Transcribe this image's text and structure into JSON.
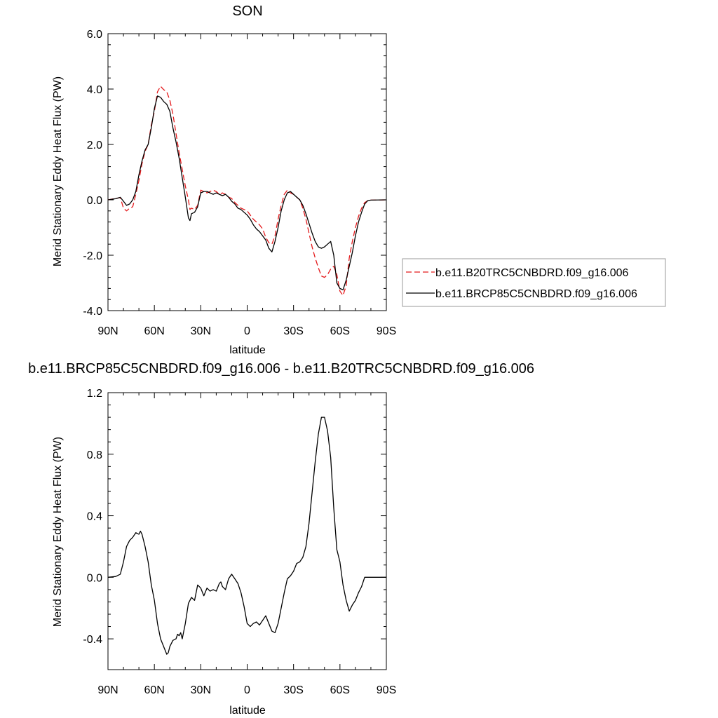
{
  "chart_data": [
    {
      "type": "line",
      "title": "SON",
      "xlabel": "latitude",
      "ylabel": "Merid Stationary Eddy Heat Flux (PW)",
      "xlim": [
        90,
        -90
      ],
      "ylim": [
        -4,
        6
      ],
      "x_ticks": [
        90,
        60,
        30,
        0,
        -30,
        -60,
        -90
      ],
      "x_tick_labels": [
        "90N",
        "60N",
        "30N",
        "0",
        "30S",
        "60S",
        "90S"
      ],
      "y_ticks": [
        -4,
        -2,
        0,
        2,
        4,
        6
      ],
      "y_tick_labels": [
        "-4.0",
        "-2.0",
        "0.0",
        "2.0",
        "4.0",
        "6.0"
      ],
      "grid": false,
      "legend_position": "right",
      "series": [
        {
          "name": "b.e11.B20TRC5CNBDRD.f09_g16.006",
          "color": "#e41a1c",
          "dash": "dashed",
          "points": [
            [
              90,
              0
            ],
            [
              85,
              0.05
            ],
            [
              82,
              0.08
            ],
            [
              80,
              -0.3
            ],
            [
              78,
              -0.4
            ],
            [
              76,
              -0.3
            ],
            [
              74,
              -0.25
            ],
            [
              72,
              0.2
            ],
            [
              70,
              0.7
            ],
            [
              68,
              1.3
            ],
            [
              66,
              1.75
            ],
            [
              64,
              2.0
            ],
            [
              62,
              2.7
            ],
            [
              60,
              3.2
            ],
            [
              58,
              3.9
            ],
            [
              56,
              4.1
            ],
            [
              54,
              3.98
            ],
            [
              52,
              3.9
            ],
            [
              50,
              3.6
            ],
            [
              48,
              3.1
            ],
            [
              46,
              2.4
            ],
            [
              44,
              1.7
            ],
            [
              42,
              1.1
            ],
            [
              40,
              0.5
            ],
            [
              38,
              0.0
            ],
            [
              37,
              -0.35
            ],
            [
              36,
              -0.3
            ],
            [
              34,
              -0.35
            ],
            [
              32,
              -0.2
            ],
            [
              30,
              0.35
            ],
            [
              28,
              0.3
            ],
            [
              26,
              0.25
            ],
            [
              24,
              0.3
            ],
            [
              22,
              0.35
            ],
            [
              20,
              0.3
            ],
            [
              18,
              0.2
            ],
            [
              16,
              0.25
            ],
            [
              14,
              0.2
            ],
            [
              12,
              0.1
            ],
            [
              10,
              0.05
            ],
            [
              8,
              -0.1
            ],
            [
              6,
              -0.2
            ],
            [
              4,
              -0.3
            ],
            [
              2,
              -0.35
            ],
            [
              0,
              -0.4
            ],
            [
              -2,
              -0.55
            ],
            [
              -4,
              -0.7
            ],
            [
              -6,
              -0.8
            ],
            [
              -8,
              -0.9
            ],
            [
              -10,
              -1.05
            ],
            [
              -12,
              -1.35
            ],
            [
              -14,
              -1.55
            ],
            [
              -16,
              -1.6
            ],
            [
              -18,
              -1.3
            ],
            [
              -20,
              -0.7
            ],
            [
              -22,
              -0.2
            ],
            [
              -24,
              0.2
            ],
            [
              -26,
              0.35
            ],
            [
              -28,
              0.25
            ],
            [
              -30,
              0.2
            ],
            [
              -32,
              0.1
            ],
            [
              -34,
              0.0
            ],
            [
              -36,
              -0.3
            ],
            [
              -38,
              -0.7
            ],
            [
              -40,
              -1.2
            ],
            [
              -42,
              -1.7
            ],
            [
              -44,
              -2.1
            ],
            [
              -46,
              -2.45
            ],
            [
              -48,
              -2.75
            ],
            [
              -50,
              -2.8
            ],
            [
              -52,
              -2.7
            ],
            [
              -54,
              -2.5
            ],
            [
              -56,
              -2.4
            ],
            [
              -58,
              -2.7
            ],
            [
              -60,
              -3.3
            ],
            [
              -62,
              -3.45
            ],
            [
              -64,
              -3.1
            ],
            [
              -66,
              -2.1
            ],
            [
              -68,
              -1.5
            ],
            [
              -70,
              -1.0
            ],
            [
              -72,
              -0.6
            ],
            [
              -74,
              -0.3
            ],
            [
              -76,
              -0.1
            ],
            [
              -78,
              -0.03
            ],
            [
              -80,
              -0.01
            ],
            [
              -90,
              0
            ]
          ]
        },
        {
          "name": "b.e11.BRCP85C5CNBDRD.f09_g16.006",
          "color": "#000000",
          "dash": "solid",
          "points": [
            [
              90,
              0
            ],
            [
              85,
              0.04
            ],
            [
              82,
              0.09
            ],
            [
              80,
              -0.05
            ],
            [
              78,
              -0.2
            ],
            [
              76,
              -0.15
            ],
            [
              74,
              0.0
            ],
            [
              72,
              0.3
            ],
            [
              70,
              0.9
            ],
            [
              68,
              1.4
            ],
            [
              66,
              1.8
            ],
            [
              64,
              2.0
            ],
            [
              62,
              2.6
            ],
            [
              60,
              3.3
            ],
            [
              58,
              3.75
            ],
            [
              56,
              3.7
            ],
            [
              54,
              3.55
            ],
            [
              52,
              3.45
            ],
            [
              50,
              3.2
            ],
            [
              48,
              2.6
            ],
            [
              46,
              2.1
            ],
            [
              44,
              1.5
            ],
            [
              42,
              0.8
            ],
            [
              40,
              0.1
            ],
            [
              38,
              -0.65
            ],
            [
              37,
              -0.75
            ],
            [
              36,
              -0.5
            ],
            [
              34,
              -0.45
            ],
            [
              32,
              -0.25
            ],
            [
              30,
              0.25
            ],
            [
              28,
              0.3
            ],
            [
              26,
              0.3
            ],
            [
              24,
              0.25
            ],
            [
              22,
              0.2
            ],
            [
              20,
              0.25
            ],
            [
              18,
              0.2
            ],
            [
              16,
              0.15
            ],
            [
              14,
              0.2
            ],
            [
              12,
              0.1
            ],
            [
              10,
              -0.05
            ],
            [
              8,
              -0.15
            ],
            [
              6,
              -0.3
            ],
            [
              4,
              -0.35
            ],
            [
              2,
              -0.45
            ],
            [
              0,
              -0.55
            ],
            [
              -2,
              -0.7
            ],
            [
              -4,
              -0.9
            ],
            [
              -6,
              -1.05
            ],
            [
              -8,
              -1.15
            ],
            [
              -10,
              -1.3
            ],
            [
              -12,
              -1.45
            ],
            [
              -14,
              -1.75
            ],
            [
              -16,
              -1.88
            ],
            [
              -18,
              -1.5
            ],
            [
              -20,
              -1.0
            ],
            [
              -22,
              -0.4
            ],
            [
              -24,
              0.0
            ],
            [
              -26,
              0.25
            ],
            [
              -28,
              0.3
            ],
            [
              -30,
              0.2
            ],
            [
              -32,
              0.1
            ],
            [
              -34,
              0.0
            ],
            [
              -36,
              -0.2
            ],
            [
              -38,
              -0.5
            ],
            [
              -40,
              -0.85
            ],
            [
              -42,
              -1.2
            ],
            [
              -44,
              -1.5
            ],
            [
              -46,
              -1.7
            ],
            [
              -48,
              -1.75
            ],
            [
              -50,
              -1.7
            ],
            [
              -52,
              -1.6
            ],
            [
              -54,
              -1.5
            ],
            [
              -56,
              -2.0
            ],
            [
              -58,
              -3.0
            ],
            [
              -60,
              -3.2
            ],
            [
              -62,
              -3.25
            ],
            [
              -64,
              -2.9
            ],
            [
              -66,
              -2.4
            ],
            [
              -68,
              -1.9
            ],
            [
              -70,
              -1.3
            ],
            [
              -72,
              -0.8
            ],
            [
              -74,
              -0.45
            ],
            [
              -76,
              -0.15
            ],
            [
              -78,
              -0.03
            ],
            [
              -80,
              -0.01
            ],
            [
              -90,
              0
            ]
          ]
        }
      ]
    },
    {
      "type": "line",
      "title": "b.e11.BRCP85C5CNBDRD.f09_g16.006 - b.e11.B20TRC5CNBDRD.f09_g16.006",
      "xlabel": "latitude",
      "ylabel": "Merid Stationary Eddy Heat Flux (PW)",
      "xlim": [
        90,
        -90
      ],
      "ylim": [
        -0.6,
        1.2
      ],
      "x_ticks": [
        90,
        60,
        30,
        0,
        -30,
        -60,
        -90
      ],
      "x_tick_labels": [
        "90N",
        "60N",
        "30N",
        "0",
        "30S",
        "60S",
        "90S"
      ],
      "y_ticks": [
        -0.4,
        0.0,
        0.4,
        0.8,
        1.2
      ],
      "y_tick_labels": [
        "-0.4",
        "0.0",
        "0.4",
        "0.8",
        "1.2"
      ],
      "grid": false,
      "series": [
        {
          "color": "#000000",
          "dash": "solid",
          "points": [
            [
              90,
              0
            ],
            [
              85,
              0.005
            ],
            [
              82,
              0.02
            ],
            [
              80,
              0.1
            ],
            [
              78,
              0.2
            ],
            [
              76,
              0.24
            ],
            [
              74,
              0.26
            ],
            [
              72,
              0.29
            ],
            [
              70,
              0.28
            ],
            [
              69,
              0.3
            ],
            [
              68,
              0.28
            ],
            [
              66,
              0.2
            ],
            [
              64,
              0.1
            ],
            [
              62,
              -0.05
            ],
            [
              60,
              -0.15
            ],
            [
              58,
              -0.3
            ],
            [
              56,
              -0.4
            ],
            [
              54,
              -0.45
            ],
            [
              52,
              -0.5
            ],
            [
              51,
              -0.49
            ],
            [
              50,
              -0.45
            ],
            [
              48,
              -0.41
            ],
            [
              46,
              -0.4
            ],
            [
              45,
              -0.37
            ],
            [
              44,
              -0.38
            ],
            [
              43,
              -0.36
            ],
            [
              42,
              -0.4
            ],
            [
              40,
              -0.3
            ],
            [
              38,
              -0.17
            ],
            [
              36,
              -0.13
            ],
            [
              34,
              -0.15
            ],
            [
              32,
              -0.05
            ],
            [
              30,
              -0.07
            ],
            [
              28,
              -0.12
            ],
            [
              26,
              -0.07
            ],
            [
              24,
              -0.09
            ],
            [
              22,
              -0.08
            ],
            [
              20,
              -0.09
            ],
            [
              18,
              -0.04
            ],
            [
              17,
              -0.03
            ],
            [
              16,
              -0.06
            ],
            [
              14,
              -0.08
            ],
            [
              12,
              -0.01
            ],
            [
              10,
              0.02
            ],
            [
              8,
              -0.01
            ],
            [
              6,
              -0.04
            ],
            [
              4,
              -0.1
            ],
            [
              2,
              -0.19
            ],
            [
              0,
              -0.3
            ],
            [
              -2,
              -0.32
            ],
            [
              -4,
              -0.3
            ],
            [
              -6,
              -0.29
            ],
            [
              -8,
              -0.31
            ],
            [
              -10,
              -0.28
            ],
            [
              -12,
              -0.25
            ],
            [
              -14,
              -0.3
            ],
            [
              -16,
              -0.35
            ],
            [
              -18,
              -0.36
            ],
            [
              -20,
              -0.3
            ],
            [
              -22,
              -0.2
            ],
            [
              -24,
              -0.1
            ],
            [
              -26,
              -0.01
            ],
            [
              -28,
              0.01
            ],
            [
              -30,
              0.04
            ],
            [
              -32,
              0.09
            ],
            [
              -34,
              0.1
            ],
            [
              -36,
              0.13
            ],
            [
              -38,
              0.2
            ],
            [
              -40,
              0.35
            ],
            [
              -42,
              0.55
            ],
            [
              -44,
              0.75
            ],
            [
              -46,
              0.93
            ],
            [
              -48,
              1.04
            ],
            [
              -50,
              1.04
            ],
            [
              -52,
              0.95
            ],
            [
              -54,
              0.78
            ],
            [
              -56,
              0.45
            ],
            [
              -58,
              0.18
            ],
            [
              -60,
              0.1
            ],
            [
              -62,
              -0.05
            ],
            [
              -64,
              -0.15
            ],
            [
              -66,
              -0.22
            ],
            [
              -68,
              -0.18
            ],
            [
              -70,
              -0.15
            ],
            [
              -72,
              -0.1
            ],
            [
              -74,
              -0.06
            ],
            [
              -76,
              0.0
            ],
            [
              -78,
              0.0
            ],
            [
              -90,
              0
            ]
          ]
        }
      ]
    }
  ]
}
